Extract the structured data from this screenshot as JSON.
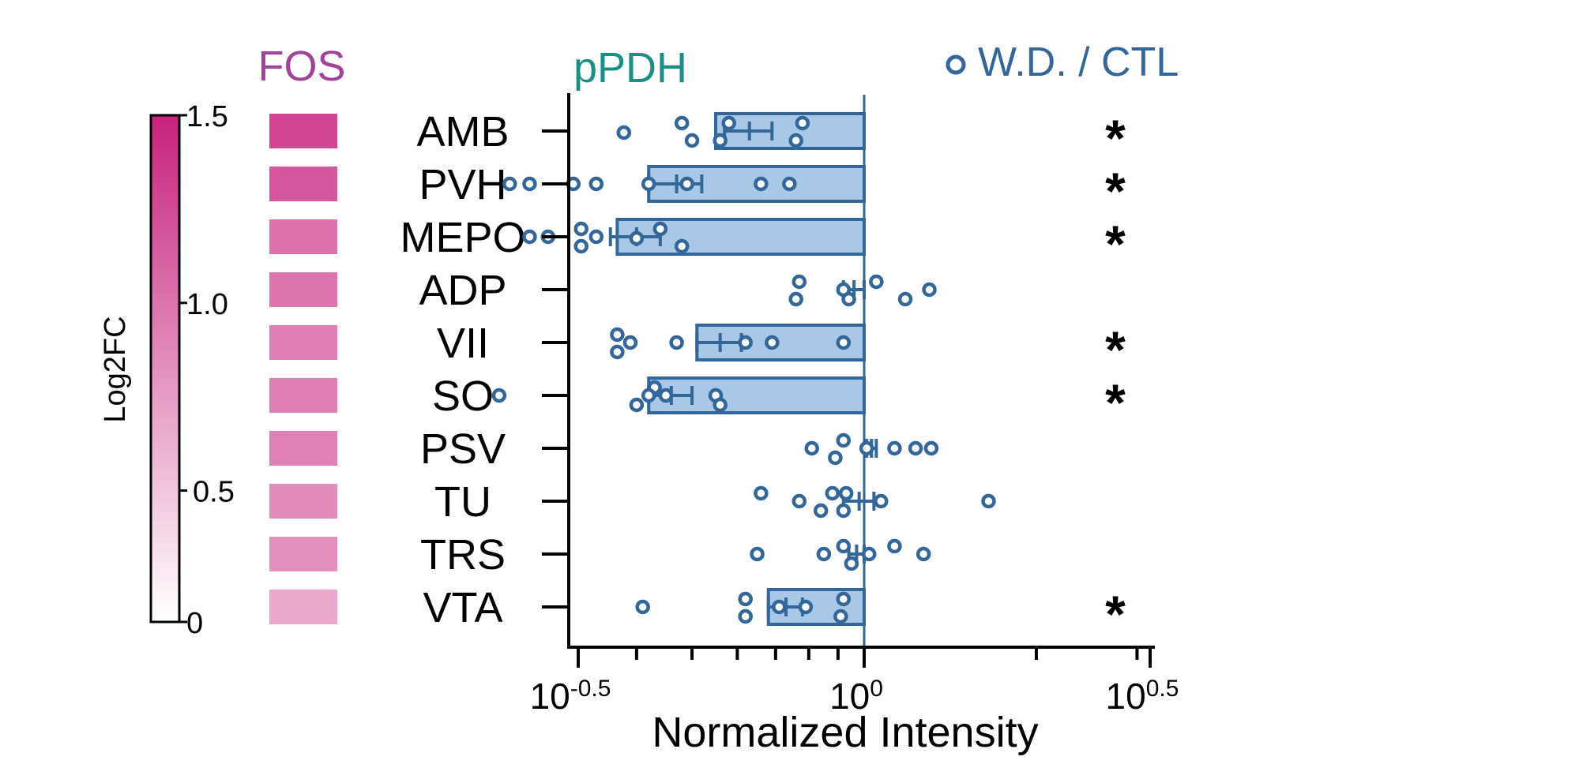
{
  "colorbar": {
    "label": "Log2FC",
    "ticks": [
      {
        "value": 1.5,
        "label": "1.5"
      },
      {
        "value": 1.0,
        "label": "1.0"
      },
      {
        "value": 0.5,
        "label": "0.5"
      },
      {
        "value": 0.15,
        "label": "0"
      }
    ],
    "min": 0.15,
    "max": 1.5,
    "low_color": "#ffffff",
    "high_color": "#c8227d"
  },
  "fos": {
    "title": "FOS",
    "title_color": "#a0449a"
  },
  "pphd": {
    "title": "pPDH",
    "title_color": "#1a8f86"
  },
  "legend": {
    "label": "W.D. / CTL",
    "color": "#336699"
  },
  "chart_data": {
    "type": "bar",
    "orientation": "horizontal",
    "xscale": "log10",
    "xlim_log10": [
      -0.5,
      0.5
    ],
    "xlabel": "Normalized Intensity",
    "x_ticks": [
      {
        "exp": -0.5,
        "base": "10",
        "sup": "-0.5"
      },
      {
        "exp": 0,
        "base": "10",
        "sup": "0"
      },
      {
        "exp": 0.5,
        "base": "10",
        "sup": "0.5"
      }
    ],
    "reference_line": 1.0,
    "bar_fill": "#a9c8e8",
    "bar_edge": "#336699",
    "categories": [
      "AMB",
      "PVH",
      "MEPO",
      "ADP",
      "VII",
      "SO",
      "PSV",
      "TU",
      "TRS",
      "VTA"
    ],
    "fos_log2fc": [
      1.28,
      1.18,
      1.02,
      1.0,
      0.94,
      0.93,
      0.92,
      0.86,
      0.84,
      0.69
    ],
    "means": [
      0.63,
      0.47,
      0.4,
      0.96,
      0.56,
      0.46,
      1.03,
      0.98,
      0.97,
      0.73
    ],
    "sem": [
      0.06,
      0.05,
      0.04,
      0.04,
      0.05,
      0.04,
      0.02,
      0.06,
      0.03,
      0.05
    ],
    "bar_end": [
      0.55,
      0.42,
      0.37,
      1.0,
      0.51,
      0.42,
      1.0,
      1.0,
      1.0,
      0.68
    ],
    "points": [
      [
        0.48,
        0.58,
        0.78,
        0.38,
        0.5,
        0.56,
        0.76
      ],
      [
        0.24,
        0.26,
        0.31,
        0.34,
        0.42,
        0.49,
        0.66,
        0.74
      ],
      [
        0.32,
        0.26,
        0.28,
        0.34,
        0.32,
        0.44,
        0.4,
        0.48
      ],
      [
        0.77,
        1.05,
        0.92,
        1.3,
        0.76,
        0.94,
        1.18
      ],
      [
        0.37,
        0.39,
        0.37,
        0.47,
        0.62,
        0.69,
        0.92
      ],
      [
        0.23,
        0.4,
        0.43,
        0.45,
        0.42,
        0.55,
        0.56
      ],
      [
        0.92,
        0.81,
        0.89,
        1.13,
        1.23,
        1.31,
        1.01
      ],
      [
        0.66,
        0.77,
        0.88,
        0.93,
        0.84,
        0.92,
        1.07,
        1.65
      ],
      [
        0.65,
        0.92,
        0.95,
        0.85,
        1.02,
        1.13,
        1.27
      ],
      [
        0.41,
        0.62,
        0.71,
        0.62,
        0.92,
        0.79,
        0.91
      ]
    ],
    "point_row_offsets": [
      [
        -10,
        -10,
        -10,
        2,
        12,
        12,
        12
      ],
      [
        0,
        0,
        0,
        0,
        0,
        0,
        0,
        0
      ],
      [
        -10,
        0,
        0,
        0,
        12,
        -10,
        2,
        12
      ],
      [
        -10,
        -10,
        0,
        0,
        12,
        12,
        12
      ],
      [
        -10,
        0,
        12,
        0,
        0,
        0,
        0
      ],
      [
        0,
        12,
        -10,
        0,
        0,
        0,
        12
      ],
      [
        -10,
        0,
        12,
        0,
        0,
        0,
        0
      ],
      [
        -10,
        0,
        -10,
        -10,
        12,
        12,
        0,
        0
      ],
      [
        0,
        -10,
        12,
        0,
        0,
        -10,
        0
      ],
      [
        0,
        -10,
        0,
        12,
        -10,
        0,
        12
      ]
    ],
    "significance": [
      "*",
      "*",
      "*",
      "",
      "*",
      "*",
      "",
      "",
      "",
      "*"
    ]
  }
}
